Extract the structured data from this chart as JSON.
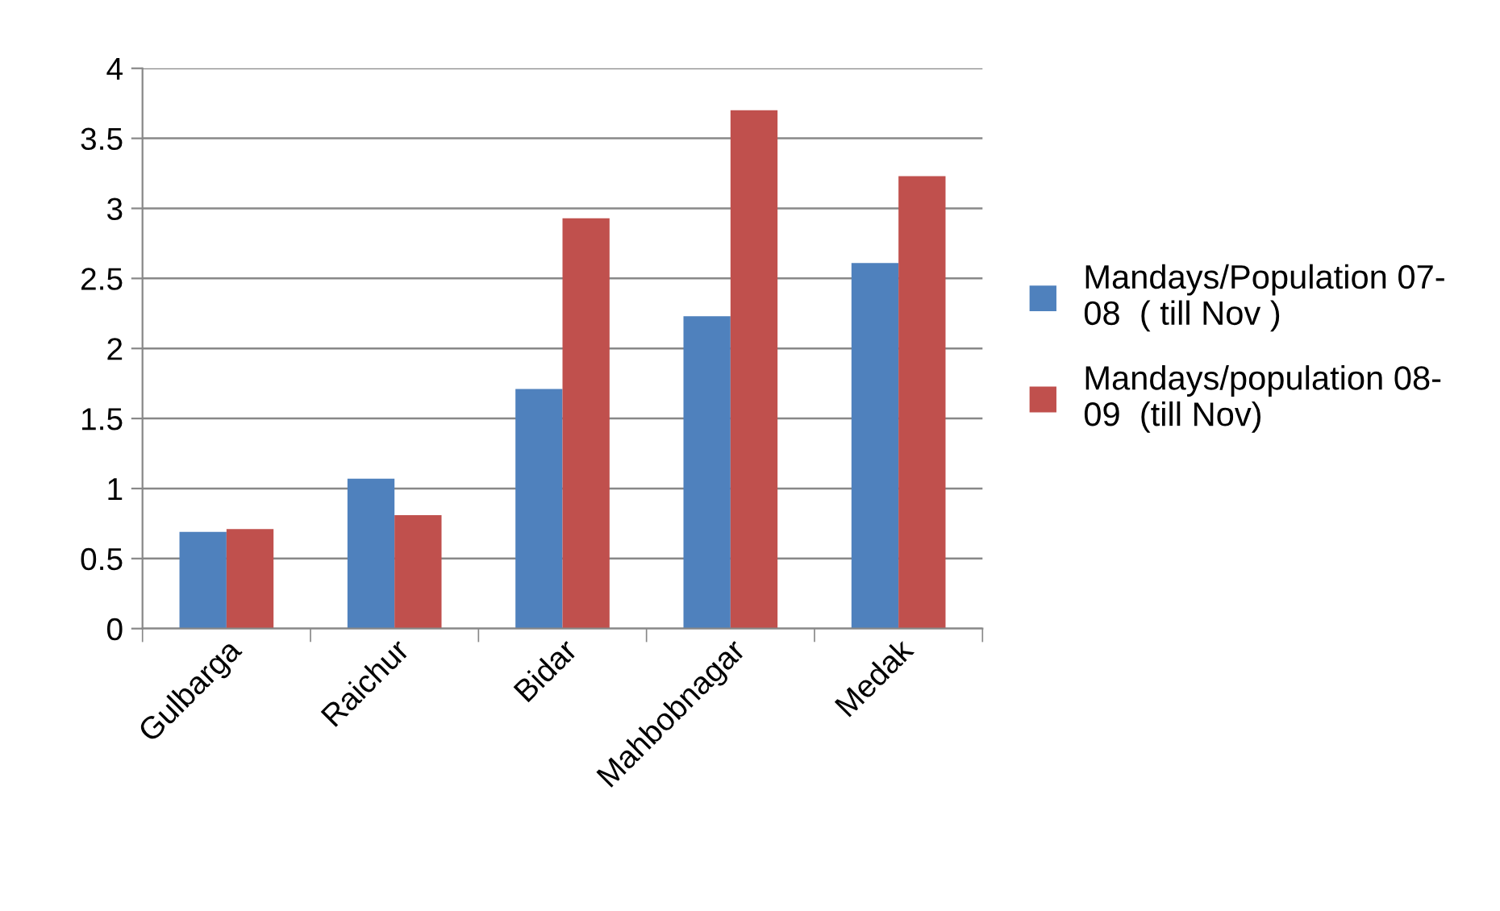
{
  "chart_data": {
    "type": "bar",
    "categories": [
      "Gulbarga",
      "Raichur",
      "Bidar",
      "Mahbobnagar",
      "Medak"
    ],
    "series": [
      {
        "name": "Mandays/Population 07-\n08  ( till Nov )",
        "color": "#4f81bd",
        "values": [
          0.69,
          1.07,
          1.71,
          2.23,
          2.61
        ]
      },
      {
        "name": "Mandays/population 08-\n09  (till Nov)",
        "color": "#c0504d",
        "values": [
          0.71,
          0.81,
          2.93,
          3.7,
          3.23
        ]
      }
    ],
    "ylim": [
      0,
      4
    ],
    "yticks": [
      0,
      0.5,
      1,
      1.5,
      2,
      2.5,
      3,
      3.5,
      4
    ],
    "grid": "y",
    "legend": "right"
  }
}
